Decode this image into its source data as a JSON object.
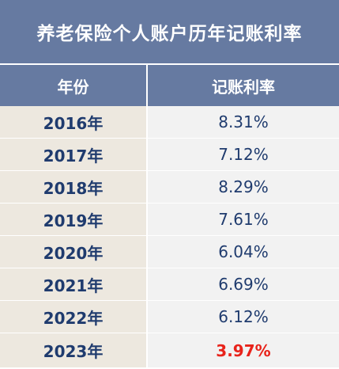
{
  "title": "养老保险个人账户历年记账利率",
  "headers": {
    "year": "年份",
    "rate": "记账利率"
  },
  "rows": [
    {
      "year": "2016年",
      "rate": "8.31%"
    },
    {
      "year": "2017年",
      "rate": "7.12%"
    },
    {
      "year": "2018年",
      "rate": "8.29%"
    },
    {
      "year": "2019年",
      "rate": "7.61%"
    },
    {
      "year": "2020年",
      "rate": "6.04%"
    },
    {
      "year": "2021年",
      "rate": "6.69%"
    },
    {
      "year": "2022年",
      "rate": "6.12%"
    },
    {
      "year": "2023年",
      "rate": "3.97%"
    }
  ],
  "colors": {
    "header_bg": "#667aa1",
    "year_cell_bg": "#ede8df",
    "rate_cell_bg": "#f2f2f2",
    "text": "#1f3b6e",
    "highlight": "#e8231b"
  }
}
